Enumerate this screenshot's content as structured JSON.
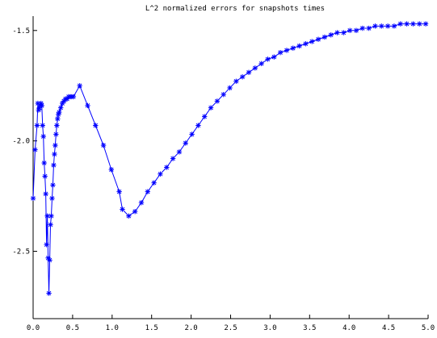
{
  "chart_data": {
    "type": "line",
    "title": "L^2 normalized errors for snapshots times",
    "xlabel": "",
    "ylabel": "",
    "xlim": [
      0.0,
      5.0
    ],
    "ylim": [
      -2.805,
      -1.435
    ],
    "grid": false,
    "legend": "none",
    "xticks": [
      0.0,
      0.5,
      1.0,
      1.5,
      2.0,
      2.5,
      3.0,
      3.5,
      4.0,
      4.5,
      5.0
    ],
    "xtick_labels": [
      "0.0",
      "0.5",
      "1.0",
      "1.5",
      "2.0",
      "2.5",
      "3.0",
      "3.5",
      "4.0",
      "4.5",
      "5.0"
    ],
    "yticks": [
      -2.5,
      -2.0,
      -1.5
    ],
    "ytick_labels": [
      "-2.5",
      "-2.0",
      "-1.5"
    ],
    "series": [
      {
        "color": "#0000ff",
        "marker": "asterisk",
        "x": [
          0.0,
          0.025,
          0.05,
          0.06,
          0.07,
          0.08,
          0.09,
          0.1,
          0.11,
          0.12,
          0.13,
          0.14,
          0.15,
          0.16,
          0.17,
          0.18,
          0.19,
          0.2,
          0.21,
          0.22,
          0.23,
          0.24,
          0.25,
          0.26,
          0.27,
          0.28,
          0.29,
          0.3,
          0.31,
          0.32,
          0.33,
          0.35,
          0.37,
          0.39,
          0.41,
          0.43,
          0.45,
          0.48,
          0.51,
          0.59,
          0.69,
          0.79,
          0.89,
          0.99,
          1.09,
          1.13,
          1.21,
          1.29,
          1.37,
          1.45,
          1.53,
          1.61,
          1.69,
          1.77,
          1.85,
          1.93,
          2.01,
          2.09,
          2.17,
          2.25,
          2.33,
          2.41,
          2.49,
          2.57,
          2.65,
          2.73,
          2.81,
          2.89,
          2.97,
          3.05,
          3.13,
          3.21,
          3.29,
          3.37,
          3.45,
          3.53,
          3.61,
          3.69,
          3.77,
          3.85,
          3.93,
          4.01,
          4.09,
          4.17,
          4.25,
          4.33,
          4.41,
          4.49,
          4.57,
          4.65,
          4.73,
          4.81,
          4.89,
          4.97
        ],
        "values": [
          -2.26,
          -2.04,
          -1.93,
          -1.83,
          -1.86,
          -1.85,
          -1.84,
          -1.83,
          -1.84,
          -1.93,
          -1.98,
          -2.1,
          -2.16,
          -2.24,
          -2.47,
          -2.34,
          -2.53,
          -2.69,
          -2.54,
          -2.38,
          -2.34,
          -2.26,
          -2.2,
          -2.11,
          -2.06,
          -2.02,
          -1.97,
          -1.93,
          -1.9,
          -1.88,
          -1.87,
          -1.85,
          -1.83,
          -1.82,
          -1.81,
          -1.81,
          -1.8,
          -1.8,
          -1.8,
          -1.75,
          -1.84,
          -1.93,
          -2.02,
          -2.13,
          -2.23,
          -2.31,
          -2.34,
          -2.32,
          -2.28,
          -2.23,
          -2.19,
          -2.15,
          -2.12,
          -2.08,
          -2.05,
          -2.01,
          -1.97,
          -1.93,
          -1.89,
          -1.85,
          -1.82,
          -1.79,
          -1.76,
          -1.73,
          -1.71,
          -1.69,
          -1.67,
          -1.65,
          -1.63,
          -1.62,
          -1.6,
          -1.59,
          -1.58,
          -1.57,
          -1.56,
          -1.55,
          -1.54,
          -1.53,
          -1.52,
          -1.51,
          -1.51,
          -1.5,
          -1.5,
          -1.49,
          -1.49,
          -1.48,
          -1.48,
          -1.48,
          -1.48,
          -1.47,
          -1.47,
          -1.47,
          -1.47,
          -1.47
        ]
      }
    ]
  }
}
